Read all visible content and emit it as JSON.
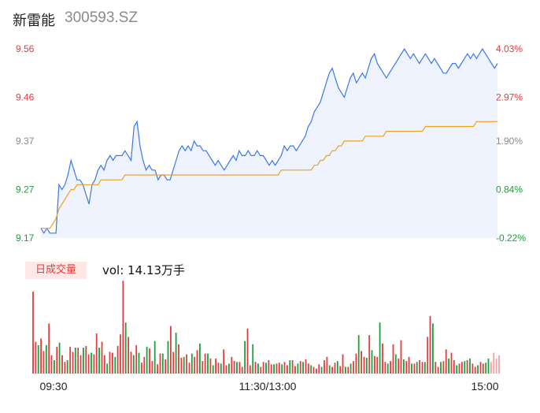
{
  "header": {
    "name": "新雷能",
    "code": "300593.SZ"
  },
  "volume_panel": {
    "tab_label": "日成交量",
    "vol_text": "vol: 14.13万手"
  },
  "colors": {
    "price": "#3b78e7",
    "avg": "#f0a020",
    "up": "#e43b3b",
    "down": "#1aa03c",
    "neutral": "#8a8a8a",
    "area": "#eef3fd"
  },
  "chart_data": [
    {
      "type": "line",
      "title": "",
      "ylim": [
        9.17,
        9.56
      ],
      "y_ticks": [
        {
          "price": "9.56",
          "pct": "4.03%",
          "value": 9.56,
          "tone": "up"
        },
        {
          "price": "9.46",
          "pct": "2.97%",
          "value": 9.46,
          "tone": "up"
        },
        {
          "price": "9.37",
          "pct": "1.90%",
          "value": 9.37,
          "tone": "neutral"
        },
        {
          "price": "9.27",
          "pct": "0.84%",
          "value": 9.27,
          "tone": "down"
        },
        {
          "price": "9.17",
          "pct": "-0.22%",
          "value": 9.17,
          "tone": "down"
        }
      ],
      "x_ticks": [
        "09:30",
        "11:30/13:00",
        "15:00"
      ],
      "series": [
        {
          "name": "price",
          "values": [
            9.19,
            9.18,
            9.19,
            9.18,
            9.18,
            9.18,
            9.28,
            9.27,
            9.28,
            9.3,
            9.33,
            9.31,
            9.29,
            9.29,
            9.28,
            9.26,
            9.24,
            9.28,
            9.29,
            9.31,
            9.32,
            9.31,
            9.33,
            9.34,
            9.33,
            9.34,
            9.34,
            9.34,
            9.35,
            9.34,
            9.33,
            9.4,
            9.41,
            9.36,
            9.33,
            9.31,
            9.32,
            9.31,
            9.31,
            9.29,
            9.3,
            9.3,
            9.29,
            9.29,
            9.31,
            9.33,
            9.35,
            9.36,
            9.35,
            9.36,
            9.35,
            9.37,
            9.36,
            9.36,
            9.35,
            9.35,
            9.34,
            9.33,
            9.32,
            9.33,
            9.32,
            9.31,
            9.32,
            9.33,
            9.34,
            9.33,
            9.35,
            9.34,
            9.34,
            9.35,
            9.34,
            9.34,
            9.35,
            9.34,
            9.34,
            9.33,
            9.32,
            9.33,
            9.32,
            9.33,
            9.34,
            9.36,
            9.35,
            9.36,
            9.36,
            9.35,
            9.36,
            9.37,
            9.38,
            9.4,
            9.41,
            9.43,
            9.44,
            9.45,
            9.47,
            9.49,
            9.51,
            9.52,
            9.5,
            9.48,
            9.47,
            9.46,
            9.48,
            9.5,
            9.51,
            9.49,
            9.5,
            9.51,
            9.5,
            9.52,
            9.54,
            9.55,
            9.53,
            9.52,
            9.51,
            9.5,
            9.51,
            9.52,
            9.53,
            9.54,
            9.55,
            9.56,
            9.55,
            9.54,
            9.55,
            9.54,
            9.53,
            9.54,
            9.55,
            9.54,
            9.53,
            9.54,
            9.53,
            9.52,
            9.51,
            9.51,
            9.52,
            9.53,
            9.53,
            9.52,
            9.53,
            9.54,
            9.55,
            9.54,
            9.55,
            9.54,
            9.55,
            9.56,
            9.55,
            9.54,
            9.53,
            9.52,
            9.53
          ]
        },
        {
          "name": "avg",
          "values": [
            9.19,
            9.19,
            9.19,
            9.19,
            9.2,
            9.21,
            9.23,
            9.24,
            9.25,
            9.26,
            9.27,
            9.27,
            9.28,
            9.28,
            9.28,
            9.28,
            9.28,
            9.28,
            9.28,
            9.28,
            9.29,
            9.29,
            9.29,
            9.29,
            9.29,
            9.29,
            9.29,
            9.29,
            9.3,
            9.3,
            9.3,
            9.3,
            9.3,
            9.3,
            9.3,
            9.3,
            9.3,
            9.3,
            9.3,
            9.3,
            9.3,
            9.3,
            9.3,
            9.3,
            9.3,
            9.3,
            9.3,
            9.3,
            9.3,
            9.3,
            9.3,
            9.3,
            9.3,
            9.3,
            9.3,
            9.3,
            9.3,
            9.3,
            9.3,
            9.3,
            9.3,
            9.3,
            9.3,
            9.3,
            9.3,
            9.3,
            9.3,
            9.3,
            9.3,
            9.3,
            9.3,
            9.3,
            9.3,
            9.3,
            9.3,
            9.3,
            9.3,
            9.3,
            9.3,
            9.3,
            9.31,
            9.31,
            9.31,
            9.31,
            9.31,
            9.31,
            9.31,
            9.31,
            9.31,
            9.31,
            9.31,
            9.32,
            9.32,
            9.33,
            9.33,
            9.34,
            9.34,
            9.35,
            9.35,
            9.36,
            9.36,
            9.37,
            9.37,
            9.37,
            9.37,
            9.37,
            9.37,
            9.37,
            9.38,
            9.38,
            9.38,
            9.38,
            9.38,
            9.38,
            9.38,
            9.39,
            9.39,
            9.39,
            9.39,
            9.39,
            9.39,
            9.39,
            9.39,
            9.39,
            9.39,
            9.39,
            9.39,
            9.39,
            9.4,
            9.4,
            9.4,
            9.4,
            9.4,
            9.4,
            9.4,
            9.4,
            9.4,
            9.4,
            9.4,
            9.4,
            9.4,
            9.4,
            9.4,
            9.4,
            9.4,
            9.41,
            9.41,
            9.41,
            9.41,
            9.41,
            9.41,
            9.41,
            9.41
          ]
        }
      ]
    },
    {
      "type": "bar",
      "title": "",
      "ylim": [
        0,
        100
      ],
      "volumes": [
        98,
        38,
        34,
        42,
        27,
        34,
        60,
        22,
        16,
        32,
        37,
        22,
        14,
        16,
        32,
        26,
        31,
        31,
        22,
        31,
        33,
        23,
        25,
        23,
        48,
        31,
        38,
        22,
        12,
        26,
        25,
        20,
        33,
        47,
        111,
        61,
        44,
        26,
        22,
        34,
        25,
        13,
        20,
        32,
        30,
        15,
        39,
        11,
        24,
        24,
        17,
        39,
        57,
        26,
        49,
        35,
        19,
        20,
        23,
        13,
        24,
        20,
        28,
        36,
        15,
        24,
        24,
        18,
        10,
        18,
        13,
        12,
        29,
        10,
        12,
        20,
        15,
        14,
        14,
        8,
        39,
        54,
        10,
        35,
        14,
        12,
        8,
        14,
        13,
        16,
        11,
        11,
        12,
        13,
        11,
        14,
        10,
        16,
        16,
        9,
        12,
        15,
        14,
        17,
        12,
        10,
        8,
        6,
        11,
        8,
        16,
        20,
        10,
        8,
        13,
        15,
        9,
        23,
        8,
        8,
        12,
        15,
        24,
        46,
        27,
        20,
        19,
        46,
        28,
        21,
        20,
        61,
        36,
        14,
        12,
        15,
        35,
        23,
        18,
        40,
        17,
        15,
        20,
        12,
        12,
        14,
        16,
        14,
        14,
        44,
        69,
        60,
        14,
        8,
        14,
        15,
        29,
        18,
        25,
        16,
        10,
        12,
        14,
        15,
        16,
        18,
        12,
        8,
        10,
        14,
        12,
        13,
        18,
        14,
        25,
        18,
        22
      ],
      "dirs": [
        "u",
        "u",
        "d",
        "u",
        "u",
        "d",
        "u",
        "u",
        "d",
        "u",
        "d",
        "u",
        "u",
        "d",
        "u",
        "u",
        "d",
        "u",
        "u",
        "d",
        "u",
        "u",
        "d",
        "u",
        "u",
        "d",
        "u",
        "u",
        "d",
        "u",
        "u",
        "d",
        "u",
        "u",
        "u",
        "d",
        "u",
        "u",
        "d",
        "u",
        "d",
        "u",
        "u",
        "d",
        "u",
        "u",
        "d",
        "u",
        "u",
        "d",
        "u",
        "d",
        "u",
        "u",
        "d",
        "u",
        "u",
        "d",
        "u",
        "u",
        "d",
        "u",
        "u",
        "d",
        "u",
        "u",
        "d",
        "u",
        "d",
        "u",
        "u",
        "d",
        "u",
        "u",
        "d",
        "u",
        "u",
        "d",
        "u",
        "u",
        "d",
        "u",
        "u",
        "d",
        "u",
        "d",
        "u",
        "u",
        "d",
        "u",
        "u",
        "d",
        "u",
        "u",
        "d",
        "u",
        "u",
        "d",
        "u",
        "u",
        "d",
        "u",
        "d",
        "u",
        "u",
        "d",
        "u",
        "u",
        "u",
        "d",
        "u",
        "u",
        "d",
        "u",
        "u",
        "d",
        "u",
        "u",
        "d",
        "u",
        "d",
        "u",
        "u",
        "d",
        "u",
        "u",
        "d",
        "u",
        "d",
        "u",
        "u",
        "d",
        "u",
        "u",
        "d",
        "u",
        "u",
        "d",
        "u",
        "u",
        "d",
        "u",
        "u",
        "d",
        "u",
        "d",
        "u",
        "u",
        "d",
        "u",
        "u",
        "d",
        "u",
        "u",
        "d",
        "u",
        "u",
        "d",
        "u",
        "u",
        "d",
        "u",
        "u",
        "d",
        "u",
        "d",
        "u",
        "u",
        "d",
        "u",
        "u",
        "d",
        "d",
        "n"
      ]
    }
  ]
}
